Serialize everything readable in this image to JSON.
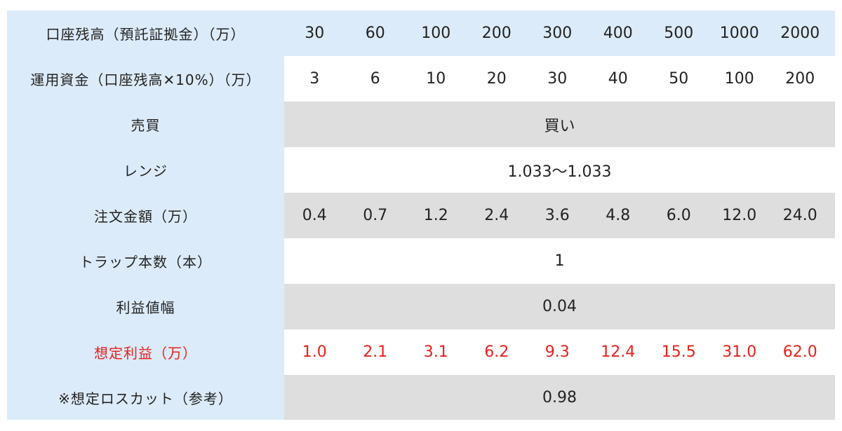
{
  "rows": [
    {
      "label": "口座残高（預託証拠金）（万）",
      "values": [
        "30",
        "60",
        "100",
        "200",
        "300",
        "400",
        "500",
        "1000",
        "2000"
      ]
    },
    {
      "label": "運用資金（口座残高✕10%）（万）",
      "values": [
        "3",
        "6",
        "10",
        "20",
        "30",
        "40",
        "50",
        "100",
        "200"
      ]
    },
    {
      "label": "売買",
      "value": "買い"
    },
    {
      "label": "レンジ",
      "value": "1.033〜1.033"
    },
    {
      "label": "注文金額（万）",
      "values": [
        "0.4",
        "0.7",
        "1.2",
        "2.4",
        "3.6",
        "4.8",
        "6.0",
        "12.0",
        "24.0"
      ]
    },
    {
      "label": "トラップ本数（本）",
      "value": "1"
    },
    {
      "label": "利益値幅",
      "value": "0.04"
    },
    {
      "label": "想定利益（万）",
      "values": [
        "1.0",
        "2.1",
        "3.1",
        "6.2",
        "9.3",
        "12.4",
        "15.5",
        "31.0",
        "62.0"
      ]
    },
    {
      "label": "※想定ロスカット（参考）",
      "value": "0.98"
    }
  ],
  "colors": {
    "label_bg": "#dcebf9",
    "gray_bg": "#dedede",
    "highlight_red": "#e8201c"
  }
}
